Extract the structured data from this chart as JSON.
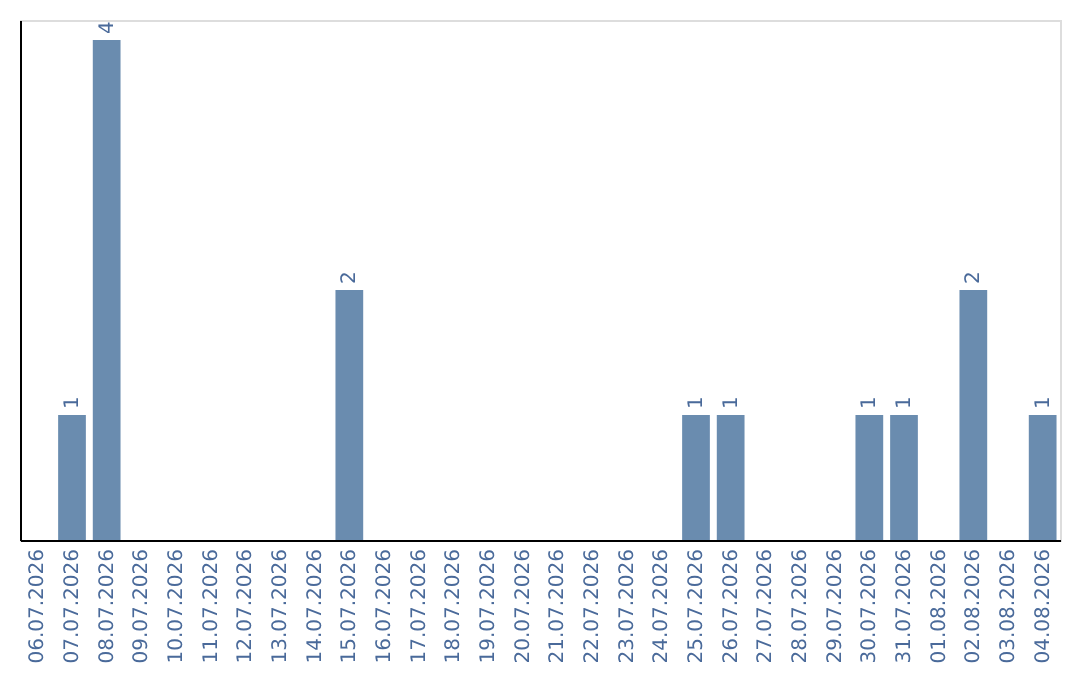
{
  "chart_data": {
    "type": "bar",
    "categories": [
      "06.07.2026",
      "07.07.2026",
      "08.07.2026",
      "09.07.2026",
      "10.07.2026",
      "11.07.2026",
      "12.07.2026",
      "13.07.2026",
      "14.07.2026",
      "15.07.2026",
      "16.07.2026",
      "17.07.2026",
      "18.07.2026",
      "19.07.2026",
      "20.07.2026",
      "21.07.2026",
      "22.07.2026",
      "23.07.2026",
      "24.07.2026",
      "25.07.2026",
      "26.07.2026",
      "27.07.2026",
      "28.07.2026",
      "29.07.2026",
      "30.07.2026",
      "31.07.2026",
      "01.08.2026",
      "02.08.2026",
      "03.08.2026",
      "04.08.2026"
    ],
    "values": [
      null,
      1,
      4,
      null,
      null,
      null,
      null,
      null,
      null,
      2,
      null,
      null,
      null,
      null,
      null,
      null,
      null,
      null,
      null,
      1,
      1,
      null,
      null,
      null,
      1,
      1,
      null,
      2,
      null,
      1
    ],
    "color": "#6a8caf",
    "ylim": [
      0,
      4.16
    ],
    "data_labels": true,
    "tick_labels": "x",
    "grid": false
  }
}
